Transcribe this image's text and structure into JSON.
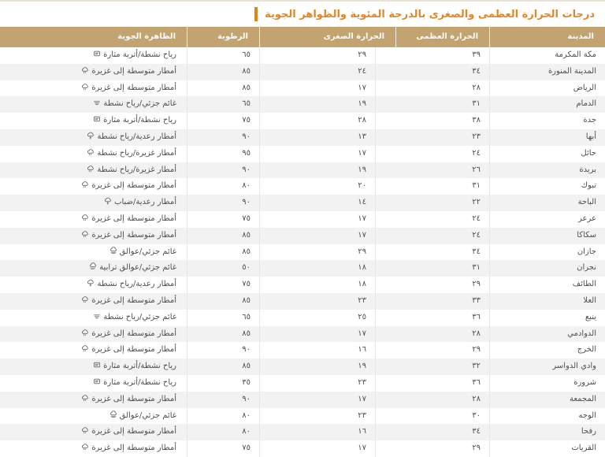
{
  "page": {
    "title": "درجات الحرارة العظمى والصغرى بالدرجة المئوية والظواهر الجوية",
    "title_color": "#e1872b",
    "accent_bar_color": "#e5820f",
    "header_bg_color": "#c3a471",
    "stripe_color": "#f2f2f2"
  },
  "table": {
    "columns": [
      {
        "key": "city",
        "label": "المدينة"
      },
      {
        "key": "max",
        "label": "الحرارة العظمى"
      },
      {
        "key": "min",
        "label": "الحرارة الصغرى"
      },
      {
        "key": "humidity",
        "label": "الرطوبة"
      },
      {
        "key": "phenomenon",
        "label": "الظاهرة الجوية"
      }
    ],
    "rows": [
      {
        "city": "مكة المكرمة",
        "max": "٣٩",
        "min": "٢٩",
        "humidity": "٦٥",
        "phenomenon": "رياح نشطة/أتربة مثارة",
        "icon": "dust"
      },
      {
        "city": "المدينة المنورة",
        "max": "٣٤",
        "min": "٢٤",
        "humidity": "٨٥",
        "phenomenon": "أمطار متوسطة إلى غزيرة",
        "icon": "cloud-rain"
      },
      {
        "city": "الرياض",
        "max": "٢٨",
        "min": "١٧",
        "humidity": "٨٥",
        "phenomenon": "أمطار متوسطة إلى غزيرة",
        "icon": "cloud-rain"
      },
      {
        "city": "الدمام",
        "max": "٣١",
        "min": "١٩",
        "humidity": "٦٥",
        "phenomenon": "غائم جزئي/رياح نشطة",
        "icon": "lines"
      },
      {
        "city": "جدة",
        "max": "٣٨",
        "min": "٢٨",
        "humidity": "٧٥",
        "phenomenon": "رياح نشطة/أتربة مثارة",
        "icon": "dust"
      },
      {
        "city": "أبها",
        "max": "٢٣",
        "min": "١٣",
        "humidity": "٩٠",
        "phenomenon": "أمطار رعدية/رياح نشطة",
        "icon": "thunder"
      },
      {
        "city": "حائل",
        "max": "٢٤",
        "min": "١٧",
        "humidity": "٩٥",
        "phenomenon": "أمطار غزيرة/رياح نشطة",
        "icon": "cloud-rain"
      },
      {
        "city": "بريدة",
        "max": "٢٦",
        "min": "١٩",
        "humidity": "٩٠",
        "phenomenon": "أمطار غزيرة/رياح نشطة",
        "icon": "cloud-rain"
      },
      {
        "city": "تبوك",
        "max": "٣١",
        "min": "٢٠",
        "humidity": "٨٠",
        "phenomenon": "أمطار متوسطة إلى غزيرة",
        "icon": "cloud-rain"
      },
      {
        "city": "الباحة",
        "max": "٢٢",
        "min": "١٤",
        "humidity": "٩٠",
        "phenomenon": "أمطار رعدية/ضباب",
        "icon": "thunder"
      },
      {
        "city": "عرعر",
        "max": "٢٤",
        "min": "١٧",
        "humidity": "٧٥",
        "phenomenon": "أمطار متوسطة إلى غزيرة",
        "icon": "cloud-rain"
      },
      {
        "city": "سكاكا",
        "max": "٢٤",
        "min": "١٧",
        "humidity": "٨٥",
        "phenomenon": "أمطار متوسطة إلى غزيرة",
        "icon": "cloud-rain"
      },
      {
        "city": "جازان",
        "max": "٣٤",
        "min": "٢٩",
        "humidity": "٨٥",
        "phenomenon": "غائم جزئي/عوالق",
        "icon": "haze"
      },
      {
        "city": "نجران",
        "max": "٣١",
        "min": "١٨",
        "humidity": "٥٠",
        "phenomenon": "غائم جزئي/عوالق ترابية",
        "icon": "haze-dust"
      },
      {
        "city": "الطائف",
        "max": "٢٩",
        "min": "١٨",
        "humidity": "٧٥",
        "phenomenon": "أمطار رعدية/رياح نشطة",
        "icon": "thunder"
      },
      {
        "city": "العلا",
        "max": "٣٣",
        "min": "٢٣",
        "humidity": "٨٥",
        "phenomenon": "أمطار متوسطة إلى غزيرة",
        "icon": "cloud-rain"
      },
      {
        "city": "ينبع",
        "max": "٣٦",
        "min": "٢٥",
        "humidity": "٦٥",
        "phenomenon": "غائم جزئي/رياح نشطة",
        "icon": "lines"
      },
      {
        "city": "الدوادمي",
        "max": "٢٨",
        "min": "١٧",
        "humidity": "٨٥",
        "phenomenon": "أمطار متوسطة إلى غزيرة",
        "icon": "cloud-rain"
      },
      {
        "city": "الخرج",
        "max": "٢٩",
        "min": "١٦",
        "humidity": "٩٠",
        "phenomenon": "أمطار متوسطة إلى غزيرة",
        "icon": "cloud-rain"
      },
      {
        "city": "وادي الدواسر",
        "max": "٣٢",
        "min": "١٩",
        "humidity": "٨٥",
        "phenomenon": "رياح نشطة/أتربة مثارة",
        "icon": "dust"
      },
      {
        "city": "شرورة",
        "max": "٣٦",
        "min": "٢٣",
        "humidity": "٣٥",
        "phenomenon": "رياح نشطة/أتربة مثارة",
        "icon": "dust"
      },
      {
        "city": "المجمعة",
        "max": "٢٨",
        "min": "١٧",
        "humidity": "٩٠",
        "phenomenon": "أمطار متوسطة إلى غزيرة",
        "icon": "cloud-rain"
      },
      {
        "city": "الوجه",
        "max": "٣٠",
        "min": "٢٣",
        "humidity": "٨٠",
        "phenomenon": "غائم جزئي/عوالق",
        "icon": "haze"
      },
      {
        "city": "رفحا",
        "max": "٣٤",
        "min": "١٦",
        "humidity": "٨٠",
        "phenomenon": "أمطار متوسطة إلى غزيرة",
        "icon": "cloud-rain"
      },
      {
        "city": "القريات",
        "max": "٢٩",
        "min": "١٧",
        "humidity": "٧٥",
        "phenomenon": "أمطار متوسطة إلى غزيرة",
        "icon": "cloud-rain"
      }
    ]
  },
  "icons": {
    "dust": {
      "name": "wind-dust-icon"
    },
    "cloud-rain": {
      "name": "rain-cloud-icon"
    },
    "lines": {
      "name": "partly-cloudy-wind-icon"
    },
    "thunder": {
      "name": "thunder-rain-icon"
    },
    "haze": {
      "name": "haze-cloud-icon"
    },
    "haze-dust": {
      "name": "dusty-haze-icon"
    }
  }
}
